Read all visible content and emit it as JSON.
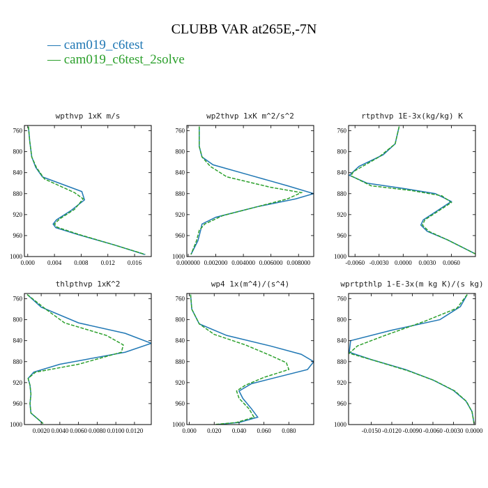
{
  "title": "CLUBB VAR at265E,-7N",
  "legend": [
    {
      "label": "— cam019_c6test",
      "color": "#1f77b4"
    },
    {
      "label": "— cam019_c6test_2solve",
      "color": "#2ca02c"
    }
  ],
  "chart_data": [
    {
      "type": "line",
      "title": "wpthvp  1xK m/s",
      "xlim": [
        -0.0005,
        0.0185
      ],
      "ylim": [
        1000,
        750
      ],
      "xticks": [
        0.0,
        0.004,
        0.008,
        0.012,
        0.016
      ],
      "xtick_labels": [
        "0.000",
        "0.004",
        "0.008",
        "0.012",
        "0.016"
      ],
      "yticks": [
        760,
        800,
        840,
        880,
        920,
        960,
        1000
      ],
      "series": [
        {
          "color": "#1f77b4",
          "dash": "none",
          "points": [
            [
              0.0001,
              752
            ],
            [
              0.0003,
              780
            ],
            [
              0.0006,
              810
            ],
            [
              0.0012,
              830
            ],
            [
              0.0022,
              848
            ],
            [
              0.0081,
              876
            ],
            [
              0.0085,
              892
            ],
            [
              0.0065,
              912
            ],
            [
              0.0043,
              930
            ],
            [
              0.0038,
              938
            ],
            [
              0.0042,
              945
            ],
            [
              0.0075,
              958
            ],
            [
              0.013,
              978
            ],
            [
              0.0175,
              996
            ]
          ]
        },
        {
          "color": "#2ca02c",
          "dash": "5,2",
          "points": [
            [
              0.0001,
              752
            ],
            [
              0.0003,
              780
            ],
            [
              0.0006,
              810
            ],
            [
              0.0013,
              830
            ],
            [
              0.0025,
              852
            ],
            [
              0.007,
              878
            ],
            [
              0.0083,
              890
            ],
            [
              0.007,
              910
            ],
            [
              0.0048,
              928
            ],
            [
              0.004,
              938
            ],
            [
              0.0044,
              944
            ],
            [
              0.0077,
              958
            ],
            [
              0.013,
              978
            ],
            [
              0.0176,
              996
            ]
          ]
        }
      ]
    },
    {
      "type": "line",
      "title": "wp2thvp  1xK m^2/s^2",
      "xlim": [
        -0.0001,
        0.0091
      ],
      "ylim": [
        1000,
        750
      ],
      "xticks": [
        0.0,
        0.002,
        0.004,
        0.006,
        0.008
      ],
      "xtick_labels": [
        "0.000000",
        "0.002000",
        "0.004000",
        "0.006000",
        "0.008000"
      ],
      "yticks": [
        760,
        800,
        840,
        880,
        920,
        960,
        1000
      ],
      "series": [
        {
          "color": "#1f77b4",
          "dash": "none",
          "points": [
            [
              0.0008,
              752
            ],
            [
              0.0008,
              790
            ],
            [
              0.001,
              810
            ],
            [
              0.0018,
              825
            ],
            [
              0.0045,
              845
            ],
            [
              0.0072,
              865
            ],
            [
              0.0091,
              880
            ],
            [
              0.0078,
              890
            ],
            [
              0.005,
              905
            ],
            [
              0.002,
              925
            ],
            [
              0.001,
              938
            ],
            [
              0.0009,
              950
            ],
            [
              0.0007,
              970
            ],
            [
              0.0002,
              996
            ]
          ]
        },
        {
          "color": "#2ca02c",
          "dash": "5,2",
          "points": [
            [
              0.0008,
              752
            ],
            [
              0.0008,
              790
            ],
            [
              0.001,
              810
            ],
            [
              0.0016,
              828
            ],
            [
              0.0028,
              848
            ],
            [
              0.006,
              868
            ],
            [
              0.0082,
              878
            ],
            [
              0.0072,
              890
            ],
            [
              0.005,
              905
            ],
            [
              0.0025,
              922
            ],
            [
              0.0012,
              938
            ],
            [
              0.0008,
              950
            ],
            [
              0.0006,
              970
            ],
            [
              0.0002,
              996
            ]
          ]
        }
      ]
    },
    {
      "type": "line",
      "title": "rtpthvp  1E-3x(kg/kg) K",
      "xlim": [
        -0.0068,
        0.009
      ],
      "ylim": [
        1000,
        750
      ],
      "xticks": [
        -0.006,
        -0.003,
        0.0,
        0.003,
        0.006
      ],
      "xtick_labels": [
        "-0.0060",
        "-0.0030",
        "0.0000",
        "0.0030",
        "0.0060"
      ],
      "yticks": [
        760,
        800,
        840,
        880,
        920,
        960,
        1000
      ],
      "series": [
        {
          "color": "#1f77b4",
          "dash": "none",
          "points": [
            [
              -0.0005,
              752
            ],
            [
              -0.001,
              785
            ],
            [
              -0.0025,
              806
            ],
            [
              -0.0055,
              828
            ],
            [
              -0.0067,
              845
            ],
            [
              -0.0045,
              860
            ],
            [
              0.0,
              870
            ],
            [
              0.004,
              880
            ],
            [
              0.006,
              895
            ],
            [
              0.004,
              915
            ],
            [
              0.0025,
              930
            ],
            [
              0.0022,
              940
            ],
            [
              0.003,
              952
            ],
            [
              0.0055,
              968
            ],
            [
              0.009,
              995
            ]
          ]
        },
        {
          "color": "#2ca02c",
          "dash": "5,2",
          "points": [
            [
              -0.0005,
              752
            ],
            [
              -0.001,
              785
            ],
            [
              -0.003,
              810
            ],
            [
              -0.0062,
              838
            ],
            [
              -0.0065,
              846
            ],
            [
              -0.004,
              865
            ],
            [
              0.001,
              874
            ],
            [
              0.0048,
              884
            ],
            [
              0.006,
              897
            ],
            [
              0.0042,
              915
            ],
            [
              0.0027,
              930
            ],
            [
              0.0024,
              940
            ],
            [
              0.0032,
              952
            ],
            [
              0.0055,
              968
            ],
            [
              0.009,
              995
            ]
          ]
        }
      ]
    },
    {
      "type": "line",
      "title": "thlpthvp  1xK^2",
      "xlim": [
        0.0002,
        0.0138
      ],
      "ylim": [
        1000,
        750
      ],
      "xticks": [
        0.002,
        0.004,
        0.006,
        0.008,
        0.01,
        0.012
      ],
      "xtick_labels": [
        "0.0020",
        "0.0040",
        "0.0060",
        "0.0080",
        "0.0100",
        "0.0120"
      ],
      "yticks": [
        760,
        800,
        840,
        880,
        920,
        960,
        1000
      ],
      "series": [
        {
          "color": "#1f77b4",
          "dash": "none",
          "points": [
            [
              0.0005,
              752
            ],
            [
              0.002,
              776
            ],
            [
              0.006,
              806
            ],
            [
              0.011,
              826
            ],
            [
              0.0138,
              845
            ],
            [
              0.011,
              862
            ],
            [
              0.004,
              885
            ],
            [
              0.0012,
              900
            ],
            [
              0.0006,
              912
            ],
            [
              0.0008,
              925
            ],
            [
              0.0009,
              942
            ],
            [
              0.0008,
              960
            ],
            [
              0.0009,
              978
            ],
            [
              0.0022,
              998
            ]
          ]
        },
        {
          "color": "#2ca02c",
          "dash": "5,2",
          "points": [
            [
              0.0005,
              752
            ],
            [
              0.0025,
              780
            ],
            [
              0.0045,
              806
            ],
            [
              0.009,
              830
            ],
            [
              0.0108,
              848
            ],
            [
              0.0106,
              862
            ],
            [
              0.006,
              885
            ],
            [
              0.0014,
              900
            ],
            [
              0.0006,
              912
            ],
            [
              0.0008,
              925
            ],
            [
              0.0009,
              942
            ],
            [
              0.0008,
              960
            ],
            [
              0.0009,
              978
            ],
            [
              0.0022,
              998
            ]
          ]
        }
      ]
    },
    {
      "type": "line",
      "title": "wp4  1x(m^4)/(s^4)",
      "xlim": [
        -0.002,
        0.1
      ],
      "ylim": [
        1000,
        750
      ],
      "xticks": [
        0.0,
        0.02,
        0.04,
        0.06,
        0.08
      ],
      "xtick_labels": [
        "0.000",
        "0.020",
        "0.040",
        "0.060",
        "0.080"
      ],
      "yticks": [
        760,
        800,
        840,
        880,
        920,
        960,
        1000
      ],
      "series": [
        {
          "color": "#1f77b4",
          "dash": "none",
          "points": [
            [
              0.001,
              752
            ],
            [
              0.002,
              780
            ],
            [
              0.008,
              808
            ],
            [
              0.03,
              830
            ],
            [
              0.065,
              850
            ],
            [
              0.09,
              866
            ],
            [
              0.1,
              880
            ],
            [
              0.095,
              895
            ],
            [
              0.07,
              910
            ],
            [
              0.05,
              922
            ],
            [
              0.04,
              936
            ],
            [
              0.043,
              950
            ],
            [
              0.05,
              970
            ],
            [
              0.055,
              986
            ],
            [
              0.04,
              996
            ],
            [
              0.022,
              1000
            ]
          ]
        },
        {
          "color": "#2ca02c",
          "dash": "5,2",
          "points": [
            [
              0.001,
              752
            ],
            [
              0.002,
              780
            ],
            [
              0.008,
              808
            ],
            [
              0.02,
              828
            ],
            [
              0.045,
              848
            ],
            [
              0.065,
              868
            ],
            [
              0.078,
              882
            ],
            [
              0.08,
              895
            ],
            [
              0.06,
              910
            ],
            [
              0.045,
              925
            ],
            [
              0.038,
              936
            ],
            [
              0.04,
              950
            ],
            [
              0.048,
              970
            ],
            [
              0.052,
              986
            ],
            [
              0.038,
              996
            ],
            [
              0.02,
              1000
            ]
          ]
        }
      ]
    },
    {
      "type": "line",
      "title": "wprtpthlp  1-E-3x(m kg K)/(s kg)",
      "xlim": [
        -0.0183,
        0.0002
      ],
      "ylim": [
        1000,
        750
      ],
      "xticks": [
        -0.015,
        -0.012,
        -0.009,
        -0.006,
        -0.003,
        0.0
      ],
      "xtick_labels": [
        "-0.0150",
        "-0.0120",
        "-0.0090",
        "-0.0060",
        "-0.0030",
        "0.0000"
      ],
      "yticks": [
        760,
        800,
        840,
        880,
        920,
        960,
        1000
      ],
      "series": [
        {
          "color": "#1f77b4",
          "dash": "none",
          "points": [
            [
              -0.001,
              752
            ],
            [
              -0.002,
              775
            ],
            [
              -0.005,
              800
            ],
            [
              -0.012,
              820
            ],
            [
              -0.018,
              840
            ],
            [
              -0.0182,
              862
            ],
            [
              -0.015,
              876
            ],
            [
              -0.01,
              895
            ],
            [
              -0.006,
              915
            ],
            [
              -0.003,
              935
            ],
            [
              -0.0012,
              955
            ],
            [
              -0.0003,
              975
            ],
            [
              0.0,
              998
            ]
          ]
        },
        {
          "color": "#2ca02c",
          "dash": "5,2",
          "points": [
            [
              -0.001,
              752
            ],
            [
              -0.0025,
              778
            ],
            [
              -0.007,
              802
            ],
            [
              -0.013,
              830
            ],
            [
              -0.017,
              850
            ],
            [
              -0.0182,
              864
            ],
            [
              -0.014,
              880
            ],
            [
              -0.0095,
              898
            ],
            [
              -0.0058,
              916
            ],
            [
              -0.0028,
              936
            ],
            [
              -0.0011,
              956
            ],
            [
              -0.0003,
              976
            ],
            [
              0.0,
              998
            ]
          ]
        }
      ]
    }
  ]
}
